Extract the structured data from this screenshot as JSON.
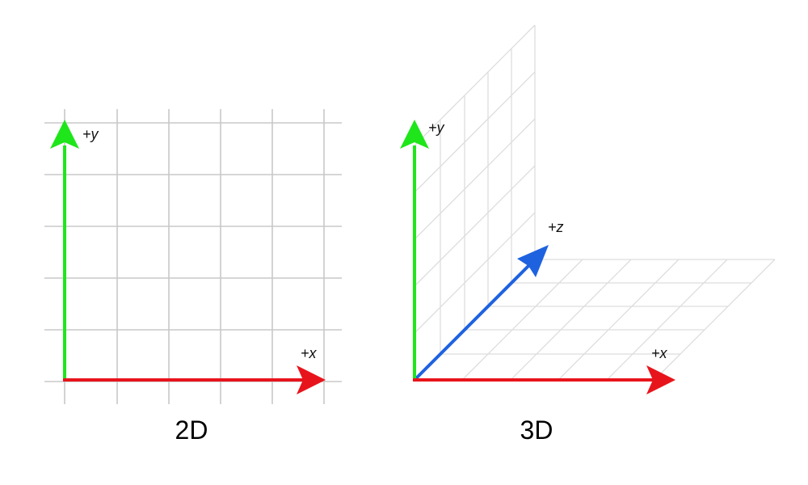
{
  "colors": {
    "x_axis": "#e8141c",
    "y_axis": "#1ee61a",
    "z_axis": "#1f62e0",
    "grid": "#c8c8c8",
    "grid_3d": "#dddddd"
  },
  "panels": [
    {
      "title": "2D",
      "axes": [
        {
          "label": "+x",
          "icon": "arrow-icon"
        },
        {
          "label": "+y",
          "icon": "arrow-icon"
        }
      ]
    },
    {
      "title": "3D",
      "axes": [
        {
          "label": "+x",
          "icon": "arrow-icon"
        },
        {
          "label": "+y",
          "icon": "arrow-icon"
        },
        {
          "label": "+z",
          "icon": "arrow-icon"
        }
      ]
    }
  ]
}
